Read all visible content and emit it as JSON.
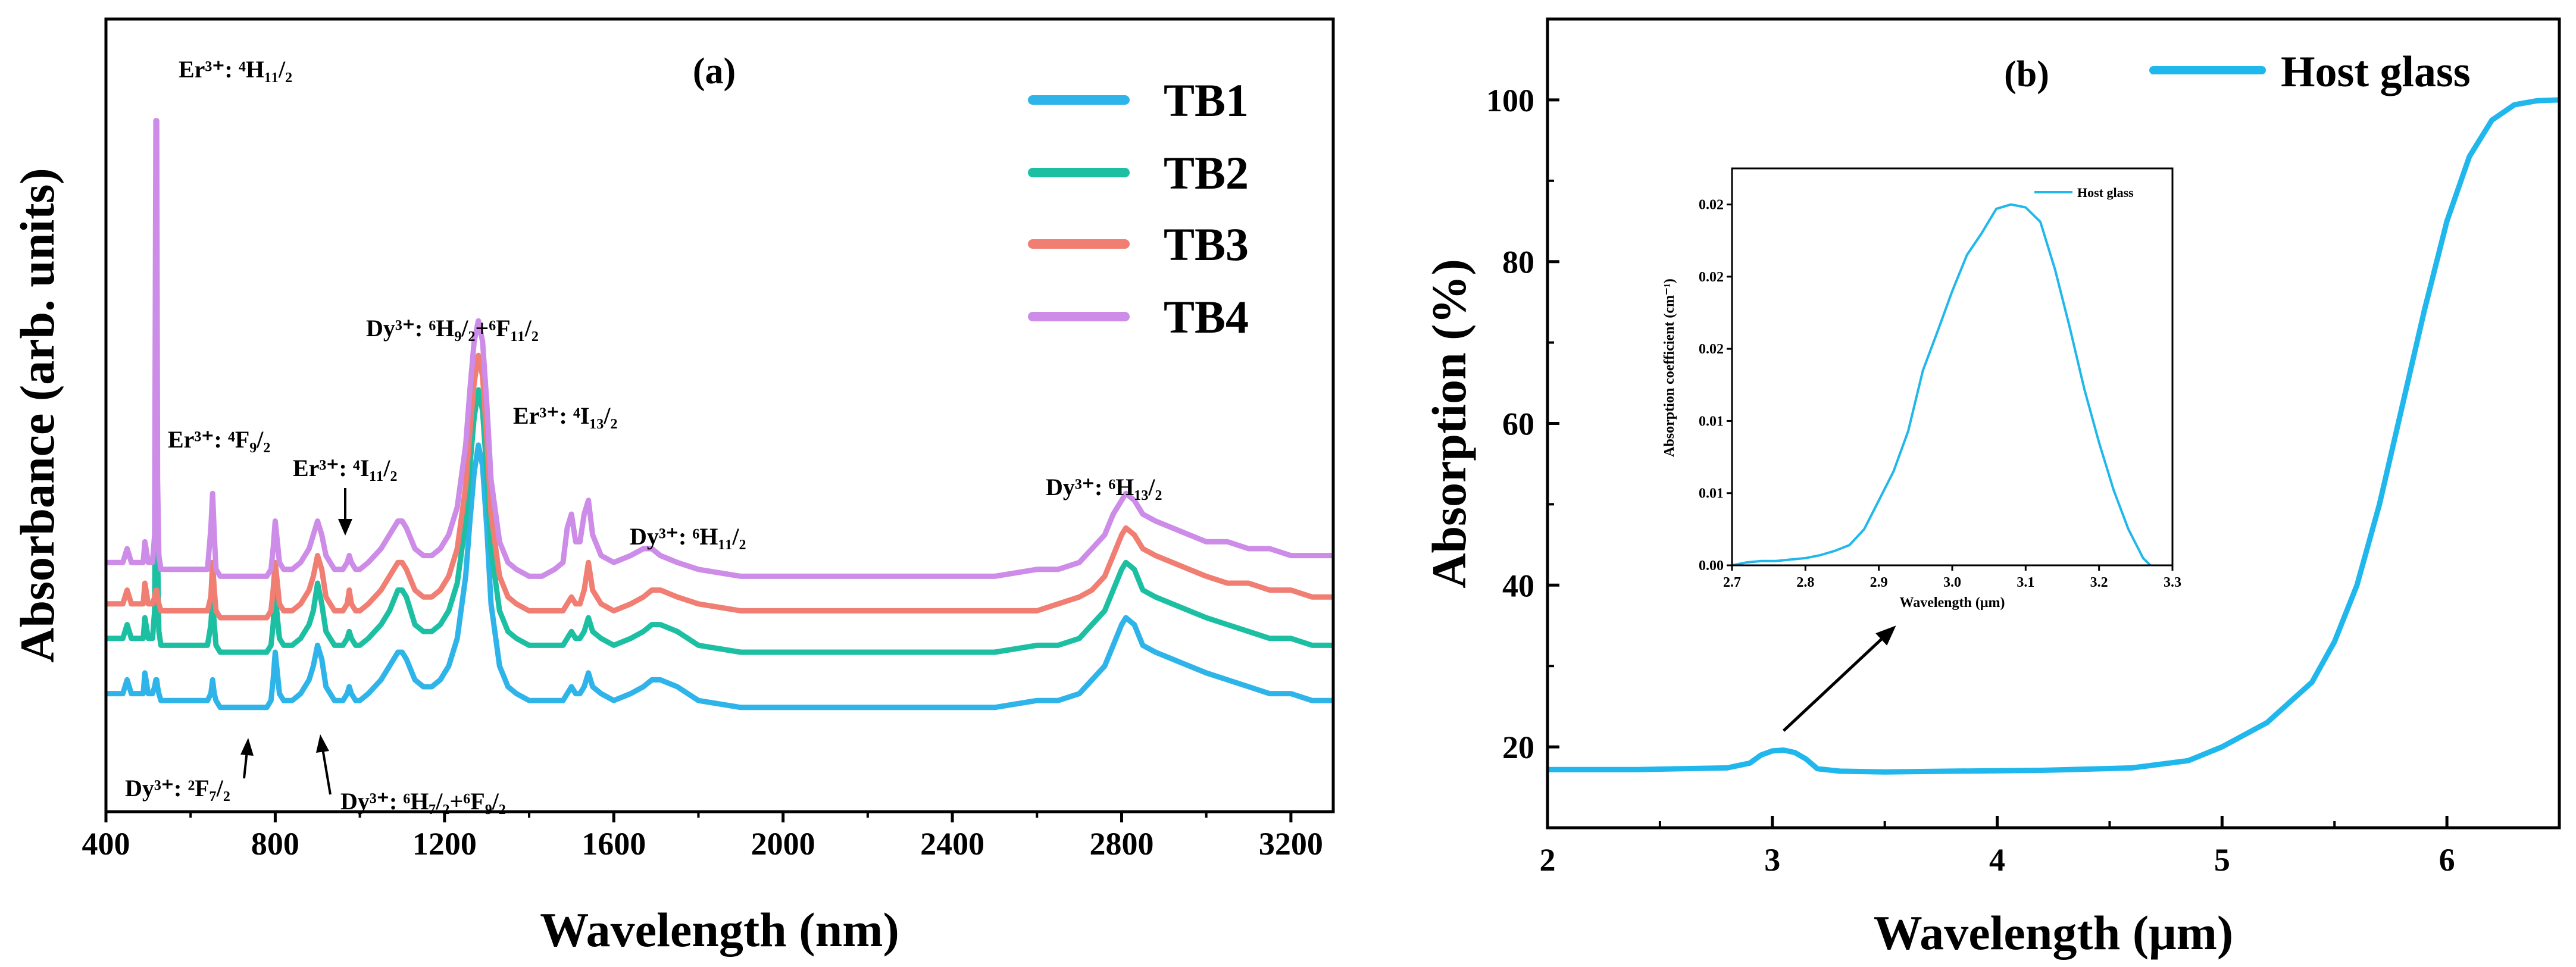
{
  "chart_data": [
    {
      "type": "line",
      "panel_label": "(a)",
      "xlabel": "Wavelength (nm)",
      "ylabel": "Absorbance (arb. units)",
      "xlim": [
        400,
        3300
      ],
      "ylim": [
        0,
        1
      ],
      "xticks": [
        "400",
        "800",
        "1200",
        "1600",
        "2000",
        "2400",
        "2800",
        "3200"
      ],
      "xtick_values": [
        400,
        800,
        1200,
        1600,
        2000,
        2400,
        2800,
        3200
      ],
      "legend": {
        "position": "top-right",
        "entries": [
          "TB1",
          "TB2",
          "TB3",
          "TB4"
        ]
      },
      "x": [
        400,
        410,
        440,
        450,
        460,
        470,
        480,
        488,
        492,
        500,
        510,
        515,
        518,
        520,
        522,
        525,
        530,
        540,
        550,
        560,
        600,
        640,
        648,
        652,
        656,
        660,
        670,
        700,
        740,
        750,
        760,
        770,
        780,
        790,
        795,
        800,
        805,
        810,
        820,
        840,
        860,
        880,
        890,
        900,
        910,
        920,
        930,
        940,
        950,
        960,
        970,
        975,
        980,
        990,
        1000,
        1020,
        1050,
        1070,
        1090,
        1100,
        1110,
        1130,
        1150,
        1170,
        1190,
        1210,
        1230,
        1250,
        1260,
        1270,
        1280,
        1290,
        1300,
        1310,
        1330,
        1350,
        1370,
        1400,
        1430,
        1460,
        1480,
        1490,
        1500,
        1510,
        1520,
        1530,
        1540,
        1550,
        1570,
        1600,
        1640,
        1670,
        1690,
        1710,
        1750,
        1800,
        1900,
        2000,
        2200,
        2400,
        2500,
        2600,
        2650,
        2700,
        2730,
        2760,
        2780,
        2800,
        2810,
        2830,
        2850,
        2880,
        2920,
        2960,
        3000,
        3050,
        3100,
        3150,
        3200,
        3250,
        3300
      ],
      "series": [
        {
          "name": "TB1",
          "color": "#2FB4EA",
          "values": [
            0.09,
            0.09,
            0.09,
            0.11,
            0.09,
            0.09,
            0.09,
            0.09,
            0.12,
            0.09,
            0.09,
            0.1,
            0.11,
            0.11,
            0.1,
            0.09,
            0.08,
            0.08,
            0.08,
            0.08,
            0.08,
            0.08,
            0.09,
            0.11,
            0.09,
            0.08,
            0.07,
            0.07,
            0.07,
            0.07,
            0.07,
            0.07,
            0.07,
            0.08,
            0.11,
            0.15,
            0.12,
            0.09,
            0.08,
            0.08,
            0.09,
            0.11,
            0.13,
            0.16,
            0.14,
            0.1,
            0.09,
            0.08,
            0.08,
            0.08,
            0.09,
            0.1,
            0.09,
            0.08,
            0.08,
            0.09,
            0.11,
            0.13,
            0.15,
            0.15,
            0.14,
            0.11,
            0.1,
            0.1,
            0.11,
            0.13,
            0.17,
            0.26,
            0.34,
            0.41,
            0.45,
            0.42,
            0.33,
            0.22,
            0.13,
            0.1,
            0.09,
            0.08,
            0.08,
            0.08,
            0.08,
            0.09,
            0.1,
            0.09,
            0.09,
            0.1,
            0.12,
            0.1,
            0.09,
            0.08,
            0.09,
            0.1,
            0.11,
            0.11,
            0.1,
            0.08,
            0.07,
            0.07,
            0.07,
            0.07,
            0.07,
            0.08,
            0.08,
            0.09,
            0.11,
            0.13,
            0.16,
            0.19,
            0.2,
            0.19,
            0.16,
            0.15,
            0.14,
            0.13,
            0.12,
            0.11,
            0.1,
            0.09,
            0.09,
            0.08,
            0.08
          ]
        },
        {
          "name": "TB2",
          "color": "#1DBFA2",
          "values": [
            0.17,
            0.17,
            0.17,
            0.19,
            0.17,
            0.17,
            0.17,
            0.17,
            0.2,
            0.17,
            0.17,
            0.21,
            0.52,
            0.52,
            0.3,
            0.18,
            0.16,
            0.16,
            0.16,
            0.16,
            0.16,
            0.16,
            0.19,
            0.23,
            0.19,
            0.16,
            0.15,
            0.15,
            0.15,
            0.15,
            0.15,
            0.15,
            0.15,
            0.16,
            0.19,
            0.24,
            0.2,
            0.17,
            0.16,
            0.16,
            0.17,
            0.19,
            0.21,
            0.25,
            0.22,
            0.18,
            0.17,
            0.16,
            0.16,
            0.16,
            0.17,
            0.18,
            0.17,
            0.16,
            0.16,
            0.17,
            0.19,
            0.21,
            0.24,
            0.24,
            0.23,
            0.19,
            0.18,
            0.18,
            0.19,
            0.21,
            0.25,
            0.34,
            0.42,
            0.49,
            0.53,
            0.5,
            0.41,
            0.3,
            0.21,
            0.18,
            0.17,
            0.16,
            0.16,
            0.16,
            0.16,
            0.17,
            0.18,
            0.17,
            0.17,
            0.18,
            0.2,
            0.18,
            0.17,
            0.16,
            0.17,
            0.18,
            0.19,
            0.19,
            0.18,
            0.16,
            0.15,
            0.15,
            0.15,
            0.15,
            0.15,
            0.16,
            0.16,
            0.17,
            0.19,
            0.21,
            0.24,
            0.27,
            0.28,
            0.27,
            0.24,
            0.23,
            0.22,
            0.21,
            0.2,
            0.19,
            0.18,
            0.17,
            0.17,
            0.16,
            0.16
          ]
        },
        {
          "name": "TB3",
          "color": "#F07E72",
          "values": [
            0.22,
            0.22,
            0.22,
            0.24,
            0.22,
            0.22,
            0.22,
            0.22,
            0.25,
            0.22,
            0.22,
            0.23,
            0.24,
            0.24,
            0.23,
            0.22,
            0.21,
            0.21,
            0.21,
            0.21,
            0.21,
            0.21,
            0.23,
            0.28,
            0.24,
            0.21,
            0.2,
            0.2,
            0.2,
            0.2,
            0.2,
            0.2,
            0.2,
            0.21,
            0.24,
            0.28,
            0.25,
            0.22,
            0.21,
            0.21,
            0.22,
            0.24,
            0.26,
            0.29,
            0.27,
            0.23,
            0.22,
            0.21,
            0.21,
            0.21,
            0.22,
            0.24,
            0.22,
            0.21,
            0.21,
            0.22,
            0.24,
            0.26,
            0.28,
            0.28,
            0.27,
            0.24,
            0.23,
            0.23,
            0.24,
            0.26,
            0.3,
            0.39,
            0.47,
            0.54,
            0.58,
            0.55,
            0.46,
            0.35,
            0.26,
            0.23,
            0.22,
            0.21,
            0.21,
            0.21,
            0.21,
            0.22,
            0.23,
            0.22,
            0.22,
            0.24,
            0.28,
            0.24,
            0.22,
            0.21,
            0.22,
            0.23,
            0.24,
            0.24,
            0.23,
            0.22,
            0.21,
            0.21,
            0.21,
            0.21,
            0.21,
            0.21,
            0.22,
            0.23,
            0.24,
            0.26,
            0.29,
            0.32,
            0.33,
            0.32,
            0.3,
            0.29,
            0.28,
            0.27,
            0.26,
            0.25,
            0.25,
            0.24,
            0.24,
            0.23,
            0.23
          ]
        },
        {
          "name": "TB4",
          "color": "#CC8CE8",
          "values": [
            0.28,
            0.28,
            0.28,
            0.3,
            0.28,
            0.28,
            0.28,
            0.28,
            0.31,
            0.28,
            0.28,
            0.32,
            0.92,
            0.92,
            0.4,
            0.29,
            0.27,
            0.27,
            0.27,
            0.27,
            0.27,
            0.27,
            0.33,
            0.38,
            0.32,
            0.27,
            0.26,
            0.26,
            0.26,
            0.26,
            0.26,
            0.26,
            0.26,
            0.27,
            0.3,
            0.34,
            0.31,
            0.28,
            0.27,
            0.27,
            0.28,
            0.3,
            0.32,
            0.34,
            0.32,
            0.29,
            0.28,
            0.27,
            0.27,
            0.27,
            0.28,
            0.29,
            0.28,
            0.27,
            0.27,
            0.28,
            0.3,
            0.32,
            0.34,
            0.34,
            0.33,
            0.3,
            0.29,
            0.29,
            0.3,
            0.32,
            0.36,
            0.45,
            0.53,
            0.6,
            0.63,
            0.6,
            0.51,
            0.4,
            0.31,
            0.28,
            0.27,
            0.26,
            0.26,
            0.27,
            0.28,
            0.33,
            0.35,
            0.31,
            0.31,
            0.35,
            0.37,
            0.32,
            0.29,
            0.28,
            0.29,
            0.3,
            0.3,
            0.29,
            0.28,
            0.27,
            0.26,
            0.26,
            0.26,
            0.26,
            0.26,
            0.27,
            0.27,
            0.28,
            0.3,
            0.32,
            0.35,
            0.37,
            0.38,
            0.37,
            0.35,
            0.34,
            0.33,
            0.32,
            0.31,
            0.31,
            0.3,
            0.3,
            0.29,
            0.29,
            0.29
          ]
        }
      ],
      "annotations": [
        {
          "label": "Er³⁺: ⁴H₁₁/₂",
          "x": 530,
          "y": 0.95
        },
        {
          "label": "Er³⁺: ⁴F₉/₂",
          "x": 530,
          "y": 0.5
        },
        {
          "label": "Er³⁺: ⁴I₁₁/₂",
          "x": 890,
          "y": 0.44
        },
        {
          "label": "Dy³⁺: ⁶H₉/₂+⁶F₁₁/₂",
          "x": 1020,
          "y": 0.7
        },
        {
          "label": "Er³⁺: ⁴I₁₃/₂",
          "x": 1420,
          "y": 0.53
        },
        {
          "label": "Dy³⁺: ⁶H₁₁/₂",
          "x": 1650,
          "y": 0.36
        },
        {
          "label": "Dy³⁺: ⁶H₁₃/₂",
          "x": 2700,
          "y": 0.42
        },
        {
          "label": "Dy³⁺: ²F₇/₂",
          "x": 480,
          "y": -0.02
        },
        {
          "label": "Dy³⁺: ⁶H₇/₂+⁶F₉/₂",
          "x": 930,
          "y": -0.03
        }
      ]
    },
    {
      "type": "line",
      "panel_label": "(b)",
      "xlabel": "Wavelength (μm)",
      "ylabel": "Absorption (%)",
      "xlim": [
        2,
        6.5
      ],
      "ylim": [
        10,
        110
      ],
      "xticks": [
        "2",
        "3",
        "4",
        "5",
        "6"
      ],
      "xtick_values": [
        2,
        3,
        4,
        5,
        6
      ],
      "yticks": [
        "20",
        "40",
        "60",
        "80",
        "100"
      ],
      "ytick_values": [
        20,
        40,
        60,
        80,
        100
      ],
      "legend": {
        "position": "top-right",
        "entries": [
          "Host glass"
        ]
      },
      "series": [
        {
          "name": "Host glass",
          "color": "#1FB7EC",
          "x": [
            2.0,
            2.4,
            2.8,
            2.9,
            2.95,
            3.0,
            3.05,
            3.1,
            3.15,
            3.2,
            3.3,
            3.5,
            3.8,
            4.2,
            4.6,
            4.85,
            5.0,
            5.2,
            5.4,
            5.5,
            5.6,
            5.7,
            5.8,
            5.9,
            6.0,
            6.1,
            6.2,
            6.3,
            6.4,
            6.5
          ],
          "values": [
            17.2,
            17.2,
            17.4,
            18.0,
            19.0,
            19.5,
            19.6,
            19.3,
            18.5,
            17.3,
            17.0,
            16.9,
            17.0,
            17.1,
            17.4,
            18.3,
            20.0,
            23.0,
            28.0,
            33.0,
            40.0,
            50.0,
            62.0,
            74.0,
            85.0,
            93.0,
            97.5,
            99.4,
            99.9,
            100.0
          ]
        }
      ],
      "arrow": {
        "from": [
          3.05,
          22
        ],
        "to": [
          3.55,
          35
        ]
      }
    },
    {
      "type": "line",
      "role": "inset",
      "xlabel": "Wavelength (μm)",
      "ylabel": "Absorption coefficient (cm⁻¹)",
      "xlim": [
        2.7,
        3.3
      ],
      "ylim": [
        0,
        0.0275
      ],
      "xticks": [
        "2.7",
        "2.8",
        "2.9",
        "3.0",
        "3.1",
        "3.2",
        "3.3"
      ],
      "xtick_values": [
        2.7,
        2.8,
        2.9,
        3.0,
        3.1,
        3.2,
        3.3
      ],
      "yticks": [
        "0.00",
        "0.01",
        "0.01",
        "0.02",
        "0.02",
        "0.02"
      ],
      "ytick_values": [
        0,
        0.005,
        0.01,
        0.015,
        0.02,
        0.025
      ],
      "legend": {
        "position": "top-right",
        "entries": [
          "Host glass"
        ]
      },
      "series": [
        {
          "name": "Host glass",
          "color": "#1FB7EC",
          "x": [
            2.7,
            2.72,
            2.74,
            2.76,
            2.78,
            2.8,
            2.82,
            2.84,
            2.86,
            2.88,
            2.9,
            2.92,
            2.94,
            2.96,
            2.98,
            3.0,
            3.02,
            3.04,
            3.06,
            3.08,
            3.1,
            3.12,
            3.14,
            3.16,
            3.18,
            3.2,
            3.22,
            3.24,
            3.26,
            3.27
          ],
          "values": [
            0.0,
            0.0002,
            0.0003,
            0.0003,
            0.0004,
            0.0005,
            0.0007,
            0.001,
            0.0014,
            0.0025,
            0.0045,
            0.0065,
            0.0093,
            0.0135,
            0.0162,
            0.019,
            0.0215,
            0.023,
            0.0247,
            0.025,
            0.0248,
            0.0238,
            0.0205,
            0.0165,
            0.0122,
            0.0085,
            0.0052,
            0.0025,
            0.0005,
            0.0
          ]
        }
      ]
    }
  ]
}
